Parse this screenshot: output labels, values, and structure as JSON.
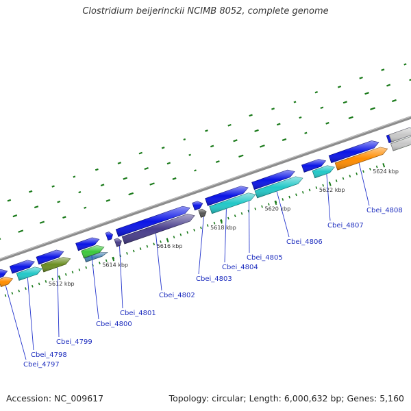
{
  "title": "Clostridium beijerinckii NCIMB 8052, complete genome",
  "footer": {
    "accession": "Accession: NC_009617",
    "topology": "Topology: circular; Length: 6,000,632 bp; Genes: 5,160"
  },
  "colors": {
    "cds_strand": "#0a14e6",
    "backbone": "#8c8c8c",
    "tick_mark": "#1a7a1a",
    "label_line": "#2233cc",
    "gene_label": "#1f2fbf"
  },
  "ticks": [
    {
      "label": "5612 kbp"
    },
    {
      "label": "5614 kbp"
    },
    {
      "label": "5616 kbp"
    },
    {
      "label": "5618 kbp"
    },
    {
      "label": "5620 kbp"
    },
    {
      "label": "5622 kbp"
    },
    {
      "label": "5624 kbp"
    }
  ],
  "genes": [
    {
      "label": "Cbei_4797",
      "color": "#ff8c00"
    },
    {
      "label": "Cbei_4798",
      "color": "#22c8c8"
    },
    {
      "label": "Cbei_4799",
      "color": "#6b8e23"
    },
    {
      "label": "Cbei_4800",
      "color": "#3cc83c"
    },
    {
      "label": "Cbei_4801",
      "color": "#483d8b"
    },
    {
      "label": "Cbei_4802",
      "color": "#483d8b"
    },
    {
      "label": "Cbei_4803",
      "color": "#555555"
    },
    {
      "label": "Cbei_4804",
      "color": "#22c8c8"
    },
    {
      "label": "Cbei_4805",
      "color": "#22c8c8"
    },
    {
      "label": "Cbei_4806",
      "color": "#22c8c8"
    },
    {
      "label": "Cbei_4807",
      "color": "#ff8c00"
    },
    {
      "label": "Cbei_4808",
      "color": "#3cc83c"
    }
  ]
}
